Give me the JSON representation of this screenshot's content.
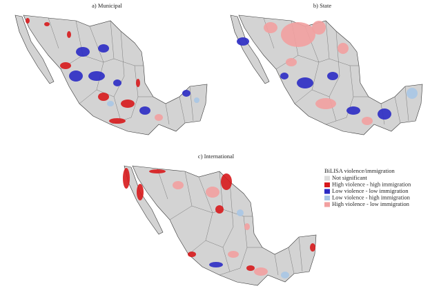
{
  "panels": [
    {
      "title": "a) Municipal"
    },
    {
      "title": "b) State"
    },
    {
      "title": "c) International"
    }
  ],
  "legend": {
    "title": "BiLISA violence/immigration",
    "items": [
      {
        "label": "Not significant",
        "color": "#dcdcdc"
      },
      {
        "label": "High violence - high immigration",
        "color": "#d7191c"
      },
      {
        "label": "Low violence - low immigration",
        "color": "#2b2bc4"
      },
      {
        "label": "Low violence - high immigration",
        "color": "#a9c6e6"
      },
      {
        "label": "High violence - low immigration",
        "color": "#f2a0a0"
      }
    ]
  }
}
